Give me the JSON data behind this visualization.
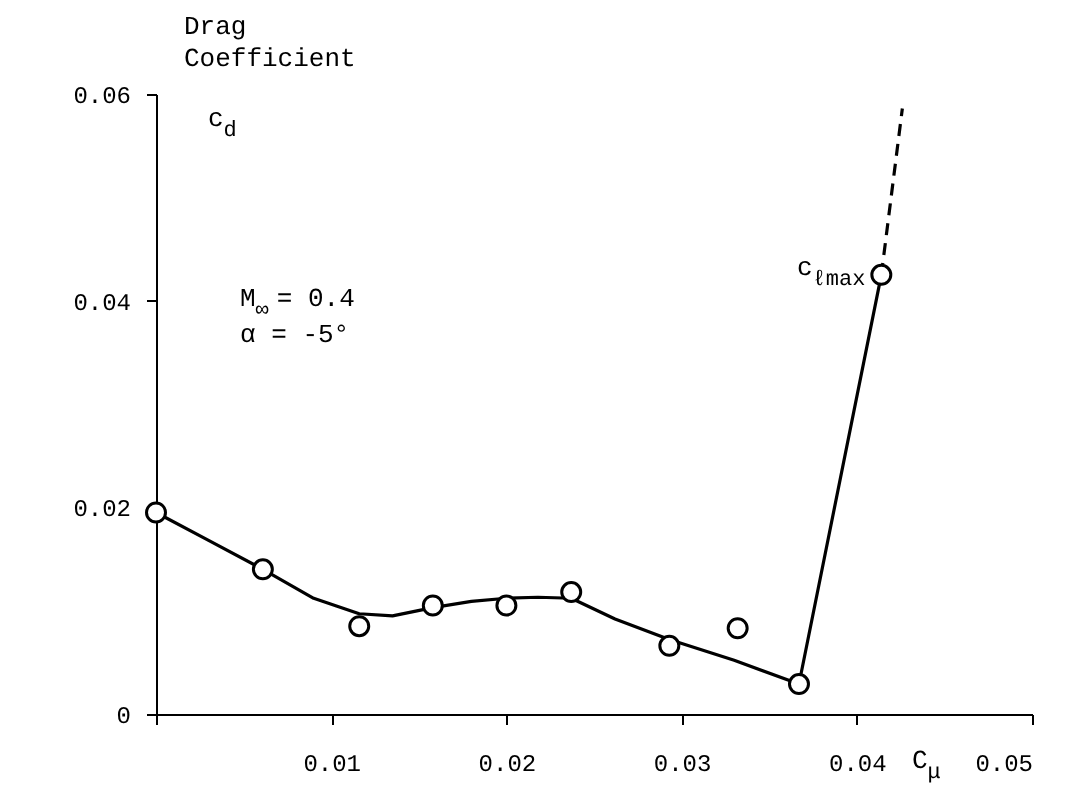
{
  "chart_data": {
    "type": "scatter",
    "ylabel": "Drag Coefficient c$_{d}$",
    "xlabel": "C$_{μ}$",
    "xlim": [
      0,
      0.05
    ],
    "xticks": [
      {
        "value": 0,
        "label": null
      },
      0.01,
      0.02,
      0.03,
      0.04,
      0.05
    ],
    "ylim": [
      0,
      0.06
    ],
    "yticks": [
      0,
      0.02,
      0.04,
      0.06
    ],
    "grid": false,
    "series": [
      {
        "type": "line",
        "color": "#000000",
        "line_style": "solid",
        "x": [
          0,
          0.003,
          0.0061,
          0.009,
          0.0116,
          0.0135,
          0.0158,
          0.018,
          0.02,
          0.0218,
          0.0237,
          0.0262,
          0.0293,
          0.033,
          0.0367,
          0.0414
        ],
        "values": [
          0.0195,
          0.0168,
          0.014,
          0.0112,
          0.0097,
          0.0095,
          0.0103,
          0.0109,
          0.0112,
          0.0113,
          0.0112,
          0.0092,
          0.0072,
          0.0052,
          0.0029,
          0.0425
        ]
      },
      {
        "type": "line",
        "color": "#000000",
        "line_style": "dashed",
        "x": [
          0.0414,
          0.0426
        ],
        "values": [
          0.0425,
          0.0586
        ]
      },
      {
        "color": "#000000",
        "marker": "circle",
        "x": [
          0,
          0.0061,
          0.0116,
          0.0158,
          0.02,
          0.0237,
          0.0293,
          0.0332,
          0.0367,
          0.0414
        ],
        "values": [
          0.0195,
          0.014,
          0.0085,
          0.0105,
          0.0105,
          0.0118,
          0.0066,
          0.0083,
          0.0029,
          0.0425
        ]
      }
    ],
    "annotations": [
      "M$_{∞}$ = 0.4",
      "α = -5°",
      {
        "text": "c$_{ℓmax}$",
        "x": 0.0414,
        "y": 0.0425
      }
    ]
  }
}
